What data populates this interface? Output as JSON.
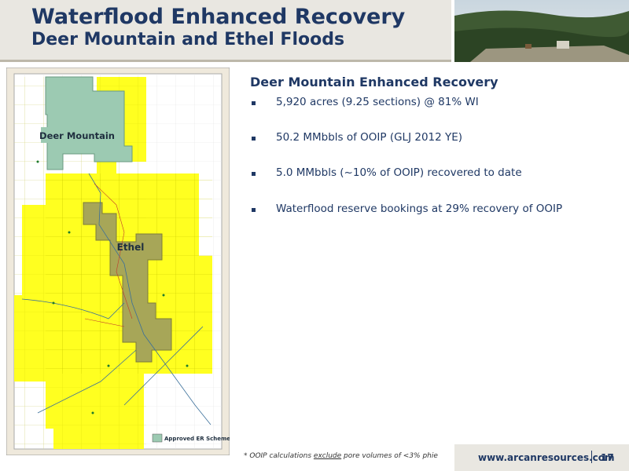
{
  "header": {
    "title": "Waterflood Enhanced Recovery",
    "subtitle": "Deer Mountain and Ethel Floods"
  },
  "map": {
    "labels": [
      "Deer Mountain",
      "Ethel"
    ],
    "legend": "Approved ER Scheme"
  },
  "content": {
    "heading": "Deer Mountain Enhanced Recovery",
    "bullets": [
      "5,920 acres (9.25 sections) @ 81% WI",
      "50.2 MMbbls of OOIP (GLJ 2012 YE)",
      "5.0 MMbbls (~10% of OOIP) recovered to date",
      "Waterflood reserve bookings at 29% recovery of OOIP"
    ]
  },
  "footnote": {
    "prefix": "* OOIP calculations ",
    "emphasis": "exclude",
    "suffix": " pore volumes of <3% phie"
  },
  "footer": {
    "url": "www.arcanresources.com",
    "page": 17
  }
}
